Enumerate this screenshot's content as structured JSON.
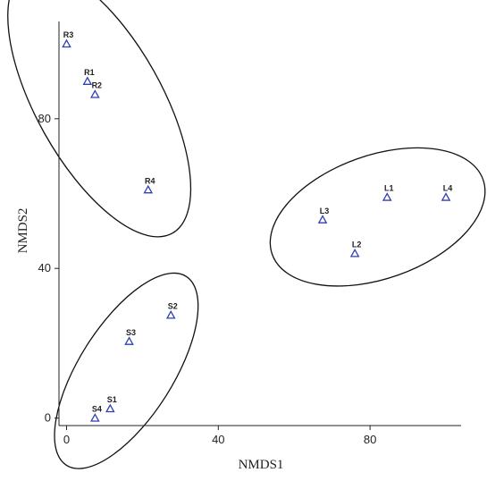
{
  "chart_data": {
    "type": "scatter",
    "xlabel": "NMDS1",
    "ylabel": "NMDS2",
    "xlim": [
      -2,
      104
    ],
    "ylim": [
      -2,
      106
    ],
    "xticks": [
      0,
      40,
      80
    ],
    "yticks": [
      0,
      40,
      80
    ],
    "marker": "open-triangle",
    "marker_color": "#2f3fb5",
    "grid": false,
    "points": [
      {
        "label": "R3",
        "x": 0,
        "y": 100
      },
      {
        "label": "R1",
        "x": 5.5,
        "y": 90
      },
      {
        "label": "R2",
        "x": 7.5,
        "y": 86.5
      },
      {
        "label": "R4",
        "x": 21.5,
        "y": 61
      },
      {
        "label": "L1",
        "x": 84.5,
        "y": 59
      },
      {
        "label": "L4",
        "x": 100,
        "y": 59
      },
      {
        "label": "L3",
        "x": 67.5,
        "y": 53
      },
      {
        "label": "L2",
        "x": 76,
        "y": 44
      },
      {
        "label": "S2",
        "x": 27.5,
        "y": 27.5
      },
      {
        "label": "S3",
        "x": 16.5,
        "y": 20.5
      },
      {
        "label": "S1",
        "x": 11.5,
        "y": 2.5
      },
      {
        "label": "S4",
        "x": 7.5,
        "y": 0
      }
    ],
    "ellipses": [
      {
        "group": "R",
        "points": [
          "R1",
          "R2",
          "R3",
          "R4"
        ]
      },
      {
        "group": "L",
        "points": [
          "L1",
          "L2",
          "L3",
          "L4"
        ]
      },
      {
        "group": "S",
        "points": [
          "S1",
          "S2",
          "S3",
          "S4"
        ]
      }
    ]
  }
}
